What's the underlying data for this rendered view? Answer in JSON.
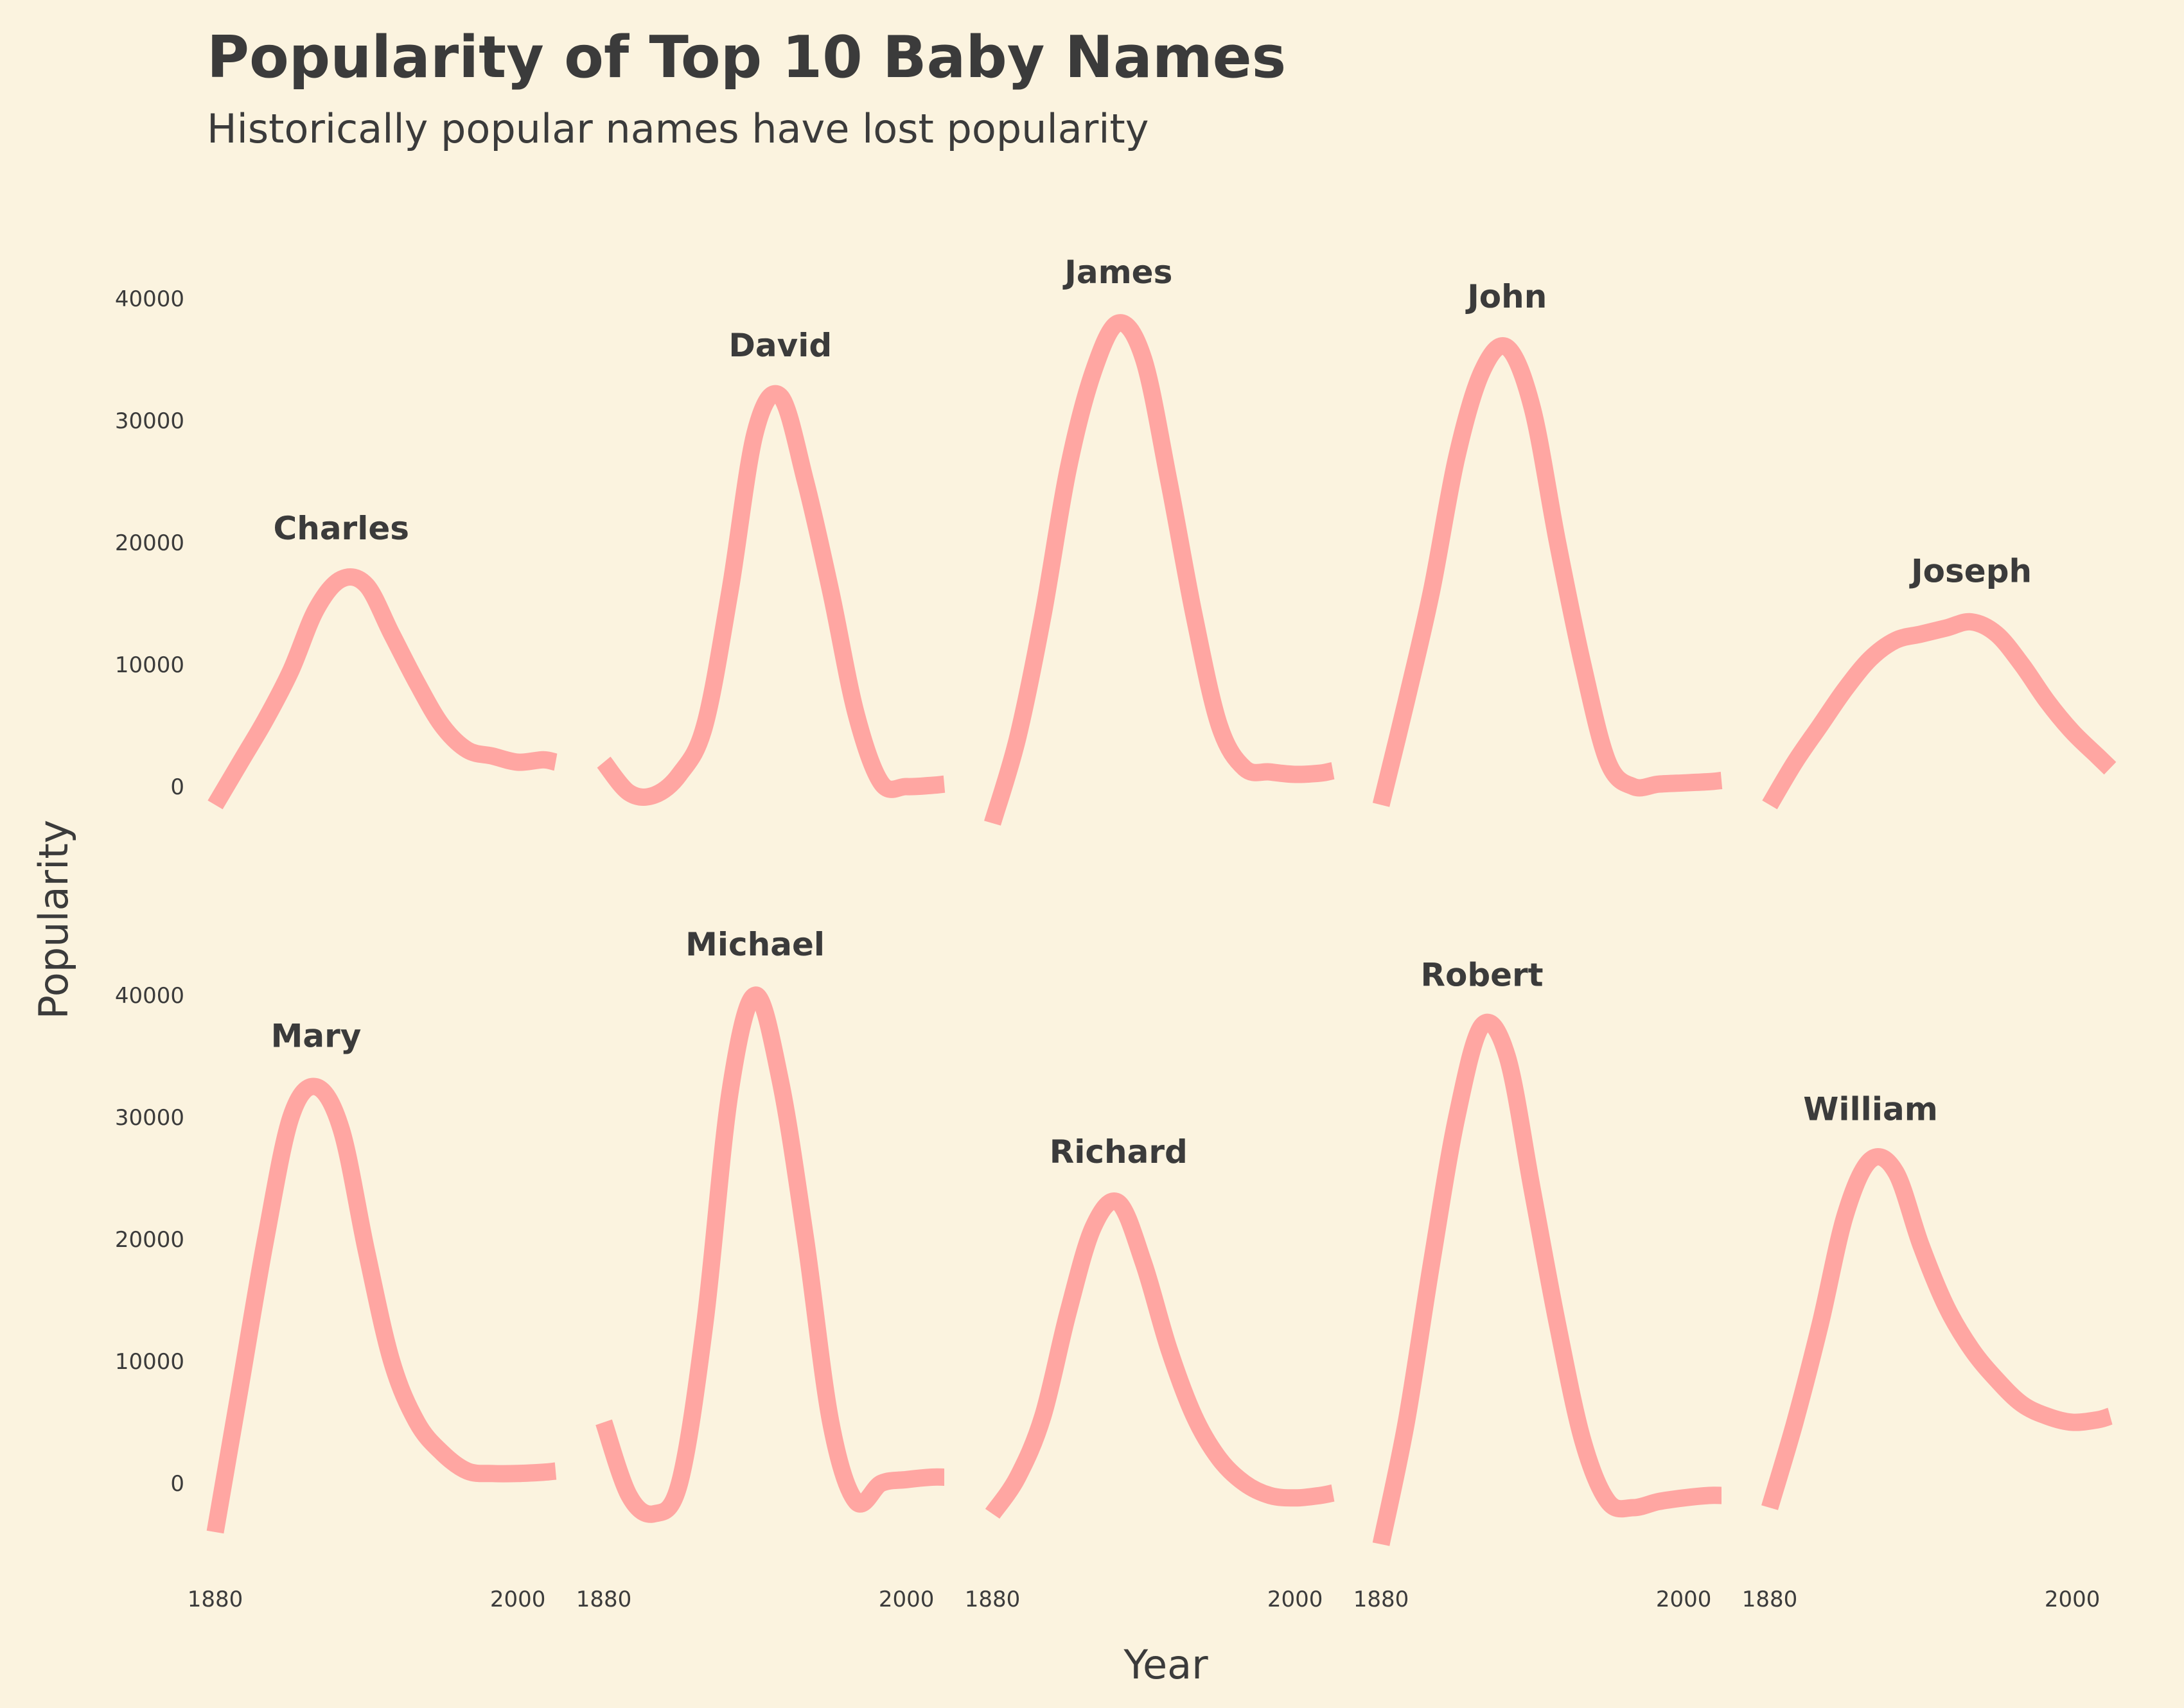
{
  "chart_data": {
    "type": "line",
    "title": "Popularity of Top 10 Baby Names",
    "subtitle": "Historically popular names have lost popularity",
    "xlabel": "Year",
    "ylabel": "Popularity",
    "xlim": [
      1880,
      2015
    ],
    "ylim": [
      -6000,
      42000
    ],
    "x_ticks": [
      1880,
      2000
    ],
    "y_ticks": [
      0,
      10000,
      20000,
      30000,
      40000
    ],
    "grid": false,
    "legend": "none",
    "line_color": "#ffa6a2",
    "background": "#fbf3df",
    "text_color": "#3b3b3b",
    "x": [
      1880,
      1890,
      1900,
      1910,
      1920,
      1930,
      1940,
      1950,
      1960,
      1970,
      1980,
      1990,
      2000,
      2010,
      2015
    ],
    "series": [
      {
        "name": "Charles",
        "values": [
          -1500,
          2000,
          5500,
          9500,
          14500,
          17000,
          16500,
          12500,
          8500,
          5000,
          3000,
          2500,
          2000,
          2200,
          2000
        ]
      },
      {
        "name": "David",
        "values": [
          2000,
          -500,
          -700,
          1000,
          5000,
          16000,
          29000,
          32000,
          25000,
          16000,
          6000,
          300,
          0,
          100,
          200
        ]
      },
      {
        "name": "James",
        "values": [
          -3000,
          4000,
          14000,
          26000,
          34000,
          38000,
          35000,
          25000,
          14000,
          5000,
          1500,
          1200,
          1000,
          1100,
          1300
        ]
      },
      {
        "name": "John",
        "values": [
          -1500,
          7000,
          16000,
          27000,
          34000,
          36000,
          31000,
          20000,
          10000,
          2000,
          0,
          200,
          300,
          400,
          500
        ]
      },
      {
        "name": "Joseph",
        "values": [
          -1500,
          2000,
          5000,
          8000,
          10500,
          12000,
          12500,
          13000,
          13500,
          12500,
          10000,
          7000,
          4500,
          2500,
          1500
        ]
      },
      {
        "name": "Mary",
        "values": [
          -4000,
          8000,
          20000,
          30000,
          32500,
          29000,
          19000,
          10000,
          5000,
          2500,
          1000,
          800,
          800,
          900,
          1000
        ]
      },
      {
        "name": "Michael",
        "values": [
          5000,
          -1000,
          -2500,
          0,
          13000,
          32000,
          40000,
          33000,
          20000,
          5000,
          -1500,
          0,
          300,
          500,
          500
        ]
      },
      {
        "name": "Richard",
        "values": [
          -2500,
          500,
          5500,
          14000,
          21000,
          23000,
          18000,
          11000,
          5500,
          2000,
          0,
          -1000,
          -1200,
          -1000,
          -800
        ]
      },
      {
        "name": "Robert",
        "values": [
          -5000,
          5000,
          18000,
          30000,
          37500,
          35000,
          24000,
          13000,
          3500,
          -1500,
          -2000,
          -1500,
          -1200,
          -1000,
          -1000
        ]
      },
      {
        "name": "William",
        "values": [
          -2000,
          5000,
          13000,
          22000,
          26500,
          25500,
          19500,
          14500,
          11000,
          8500,
          6500,
          5500,
          5000,
          5200,
          5500
        ]
      }
    ]
  }
}
